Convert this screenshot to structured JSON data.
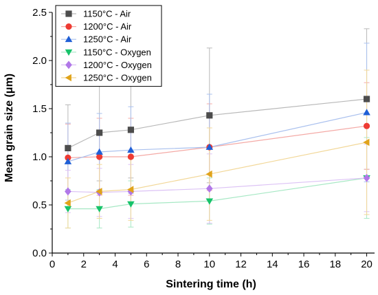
{
  "chart_data": {
    "type": "scatter",
    "title": "",
    "xlabel": "Sintering time (h)",
    "ylabel": "Mean grain size (μm)",
    "xlim": [
      0,
      20.5
    ],
    "ylim": [
      0,
      2.5
    ],
    "xticks": [
      "0",
      "2",
      "4",
      "6",
      "8",
      "10",
      "12",
      "14",
      "16",
      "18",
      "20"
    ],
    "yticks": [
      "0.0",
      "0.5",
      "1.0",
      "1.5",
      "2.0",
      "2.5"
    ],
    "grid": false,
    "legend_position": "top-left",
    "series": [
      {
        "name": "1150°C - Air",
        "marker": "square",
        "color": "#4d4d4d",
        "line_color": "#b8b8b8",
        "x": [
          1,
          3,
          5,
          10,
          20
        ],
        "y": [
          1.09,
          1.25,
          1.28,
          1.43,
          1.6
        ],
        "err": [
          0.45,
          0.5,
          0.5,
          0.7,
          0.73
        ]
      },
      {
        "name": "1200°C - Air",
        "marker": "circle",
        "color": "#ee3b33",
        "line_color": "#f4a9a5",
        "x": [
          1,
          3,
          5,
          10,
          20
        ],
        "y": [
          0.99,
          1.0,
          1.0,
          1.1,
          1.32
        ],
        "err": [
          0.35,
          0.4,
          0.4,
          0.45,
          0.45
        ]
      },
      {
        "name": "1250°C - Air",
        "marker": "triangle-up",
        "color": "#1f5fd6",
        "line_color": "#a9c0ee",
        "x": [
          1,
          3,
          5,
          10,
          20
        ],
        "y": [
          0.95,
          1.05,
          1.07,
          1.1,
          1.46
        ],
        "err": [
          0.4,
          0.4,
          0.45,
          0.55,
          0.72
        ]
      },
      {
        "name": "1150°C - Oxygen",
        "marker": "triangle-down",
        "color": "#17c36a",
        "line_color": "#a6e8c4",
        "x": [
          1,
          3,
          5,
          10,
          20
        ],
        "y": [
          0.46,
          0.46,
          0.51,
          0.54,
          0.78
        ],
        "err": [
          0.2,
          0.2,
          0.24,
          0.24,
          0.42
        ]
      },
      {
        "name": "1200°C - Oxygen",
        "marker": "diamond",
        "color": "#b178e8",
        "line_color": "#dcc2f5",
        "x": [
          1,
          3,
          5,
          10,
          20
        ],
        "y": [
          0.64,
          0.63,
          0.64,
          0.67,
          0.78
        ],
        "err": [
          0.22,
          0.25,
          0.28,
          0.36,
          0.35
        ]
      },
      {
        "name": "1250°C - Oxygen",
        "marker": "triangle-left",
        "color": "#e0a31a",
        "line_color": "#f2d797",
        "x": [
          1,
          3,
          5,
          10,
          20
        ],
        "y": [
          0.52,
          0.64,
          0.66,
          0.82,
          1.15
        ],
        "err": [
          0.26,
          0.28,
          0.32,
          0.48,
          0.75
        ]
      }
    ]
  }
}
